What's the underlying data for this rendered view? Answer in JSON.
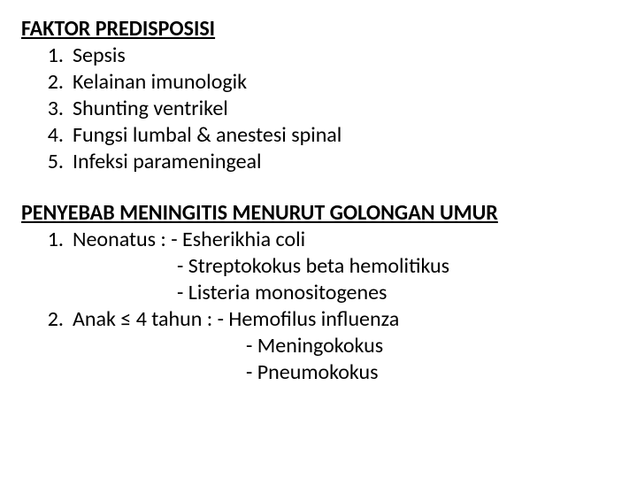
{
  "section1": {
    "heading": "FAKTOR PREDISPOSISI",
    "items": [
      {
        "num": "1.",
        "text": "Sepsis"
      },
      {
        "num": "2.",
        "text": "Kelainan imunologik"
      },
      {
        "num": "3.",
        "text": "Shunting ventrikel"
      },
      {
        "num": "4.",
        "text": "Fungsi lumbal & anestesi spinal"
      },
      {
        "num": "5.",
        "text": "Infeksi parameningeal"
      }
    ]
  },
  "section2": {
    "heading": "PENYEBAB MENINGITIS MENURUT GOLONGAN UMUR",
    "item1": {
      "num": "1.",
      "line1": "Neonatus : - Esherikhia coli",
      "line2": "- Streptokokus beta hemolitikus",
      "line3": "- Listeria monositogenes"
    },
    "item2": {
      "num": "2.",
      "line1": "Anak  ≤ 4 tahun : - Hemofilus influenza",
      "line2": "- Meningokokus",
      "line3": "- Pneumokokus"
    }
  }
}
